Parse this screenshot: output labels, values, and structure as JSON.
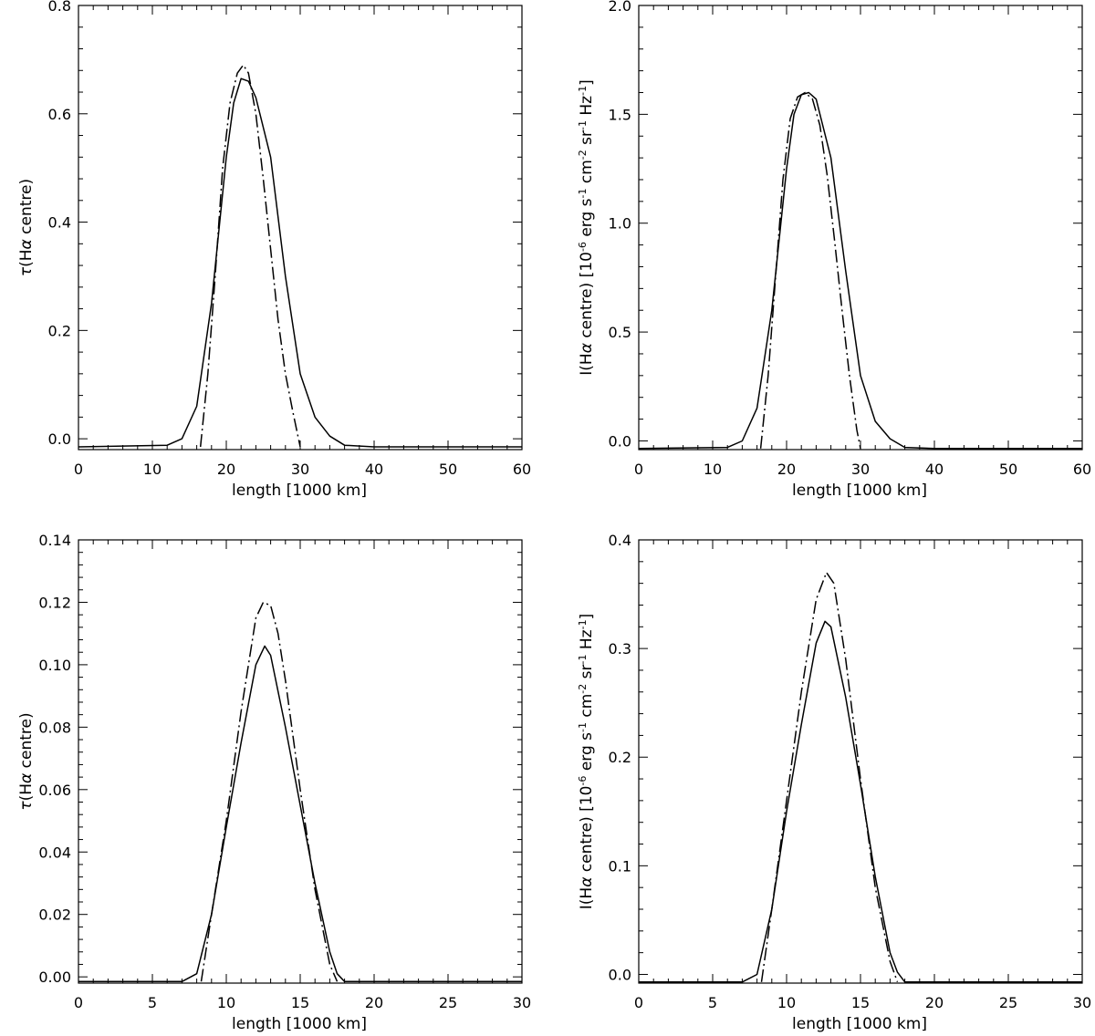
{
  "chart_data": [
    {
      "type": "line",
      "xlabel": "length [1000 km]",
      "ylabel_parts": [
        "τ",
        "(H",
        "α",
        " centre)"
      ],
      "xlim": [
        0,
        60
      ],
      "ylim": [
        -0.02,
        0.8
      ],
      "xticks": [
        "0",
        "10",
        "20",
        "30",
        "40",
        "50",
        "60"
      ],
      "yticks": [
        "0.0",
        "0.2",
        "0.4",
        "0.6",
        "0.8"
      ],
      "series": [
        {
          "style": "solid",
          "x": [
            0,
            12,
            14,
            16,
            18,
            20,
            21,
            22,
            23,
            24,
            26,
            28,
            30,
            32,
            34,
            36,
            40,
            60
          ],
          "y": [
            -0.015,
            -0.012,
            0.0,
            0.06,
            0.25,
            0.52,
            0.62,
            0.665,
            0.66,
            0.63,
            0.52,
            0.3,
            0.12,
            0.04,
            0.005,
            -0.012,
            -0.015,
            -0.015
          ]
        },
        {
          "style": "dash-dot",
          "x": [
            16.5,
            17.5,
            18.5,
            19.5,
            20.5,
            21.5,
            22.3,
            23.0,
            24.0,
            25.0,
            26.0,
            27.0,
            28.0,
            29.0,
            30.0
          ],
          "y": [
            -0.015,
            0.12,
            0.3,
            0.5,
            0.62,
            0.675,
            0.69,
            0.675,
            0.6,
            0.48,
            0.35,
            0.22,
            0.12,
            0.05,
            -0.015
          ]
        }
      ]
    },
    {
      "type": "line",
      "xlabel": "length [1000 km]",
      "ylabel_parts": [
        "I(H",
        "α",
        " centre) [10",
        "-6",
        " erg s",
        "-1",
        " cm",
        "-2",
        " sr",
        "-1",
        " Hz",
        "-1",
        "]"
      ],
      "xlim": [
        0,
        60
      ],
      "ylim": [
        -0.04,
        2.0
      ],
      "xticks": [
        "0",
        "10",
        "20",
        "30",
        "40",
        "50",
        "60"
      ],
      "yticks": [
        "0.0",
        "0.5",
        "1.0",
        "1.5",
        "2.0"
      ],
      "series": [
        {
          "style": "solid",
          "x": [
            0,
            12,
            14,
            16,
            18,
            20,
            21,
            22,
            23,
            24,
            26,
            28,
            30,
            32,
            34,
            36,
            40,
            60
          ],
          "y": [
            -0.035,
            -0.03,
            0.0,
            0.15,
            0.6,
            1.25,
            1.5,
            1.59,
            1.6,
            1.57,
            1.3,
            0.78,
            0.3,
            0.09,
            0.01,
            -0.03,
            -0.035,
            -0.035
          ]
        },
        {
          "style": "dash-dot",
          "x": [
            16.5,
            17.5,
            18.5,
            19.5,
            20.5,
            21.5,
            22.5,
            23.5,
            24.5,
            25.5,
            26.5,
            27.5,
            28.5,
            29.5,
            30.0
          ],
          "y": [
            -0.035,
            0.3,
            0.75,
            1.2,
            1.48,
            1.58,
            1.6,
            1.57,
            1.45,
            1.22,
            0.92,
            0.6,
            0.3,
            0.05,
            -0.035
          ]
        }
      ]
    },
    {
      "type": "line",
      "xlabel": "length [1000 km]",
      "ylabel_parts": [
        "τ",
        "(H",
        "α",
        " centre)"
      ],
      "xlim": [
        0,
        30
      ],
      "ylim": [
        -0.002,
        0.14
      ],
      "xticks": [
        "0",
        "5",
        "10",
        "15",
        "20",
        "25",
        "30"
      ],
      "yticks": [
        "0.00",
        "0.02",
        "0.04",
        "0.06",
        "0.08",
        "0.10",
        "0.12",
        "0.14"
      ],
      "series": [
        {
          "style": "solid",
          "x": [
            0,
            7,
            8,
            9,
            10,
            11,
            12,
            12.6,
            13,
            14,
            15,
            16,
            17,
            17.5,
            18,
            30
          ],
          "y": [
            -0.0015,
            -0.0015,
            0.001,
            0.02,
            0.048,
            0.075,
            0.1,
            0.106,
            0.103,
            0.08,
            0.055,
            0.03,
            0.008,
            0.001,
            -0.0015,
            -0.0015
          ]
        },
        {
          "style": "dash-dot",
          "x": [
            8.3,
            9,
            10,
            11,
            12,
            12.5,
            13,
            13.5,
            14,
            15,
            16,
            17,
            17.5
          ],
          "y": [
            -0.0015,
            0.02,
            0.05,
            0.085,
            0.115,
            0.12,
            0.119,
            0.11,
            0.095,
            0.06,
            0.028,
            0.004,
            -0.0015
          ]
        }
      ]
    },
    {
      "type": "line",
      "xlabel": "length [1000 km]",
      "ylabel_parts": [
        "I(H",
        "α",
        " centre) [10",
        "-6",
        " erg s",
        "-1",
        " cm",
        "-2",
        " sr",
        "-1",
        " Hz",
        "-1",
        "]"
      ],
      "xlim": [
        0,
        30
      ],
      "ylim": [
        -0.008,
        0.4
      ],
      "xticks": [
        "0",
        "5",
        "10",
        "15",
        "20",
        "25",
        "30"
      ],
      "yticks": [
        "0.0",
        "0.1",
        "0.2",
        "0.3",
        "0.4"
      ],
      "series": [
        {
          "style": "solid",
          "x": [
            0,
            7,
            8,
            9,
            10,
            11,
            12,
            12.6,
            13,
            14,
            15,
            16,
            17,
            17.5,
            18,
            30
          ],
          "y": [
            -0.007,
            -0.007,
            0.0,
            0.06,
            0.15,
            0.23,
            0.305,
            0.325,
            0.32,
            0.255,
            0.175,
            0.09,
            0.02,
            0.002,
            -0.007,
            -0.007
          ]
        },
        {
          "style": "dash-dot",
          "x": [
            8.3,
            9,
            10,
            11,
            12,
            12.7,
            13.2,
            14,
            15,
            16,
            17,
            17.5
          ],
          "y": [
            -0.007,
            0.06,
            0.16,
            0.26,
            0.345,
            0.37,
            0.36,
            0.29,
            0.18,
            0.08,
            0.012,
            -0.007
          ]
        }
      ]
    }
  ]
}
